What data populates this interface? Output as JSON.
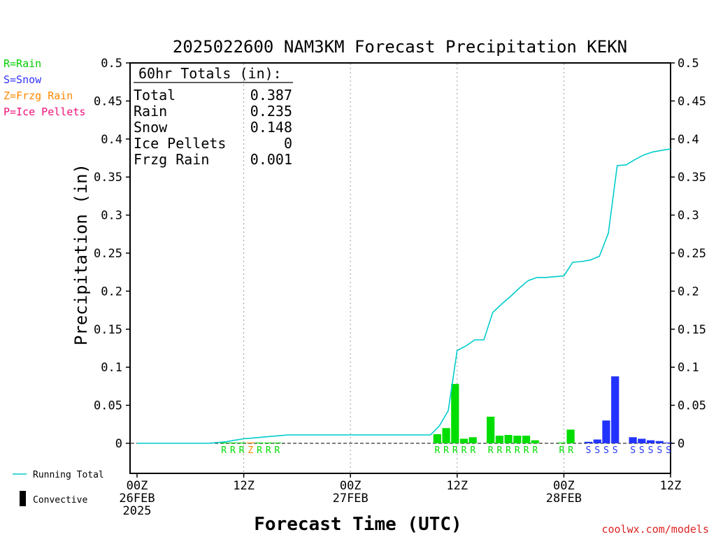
{
  "chart_data": {
    "type": "bar",
    "title": "2025022600 NAM3KM Forecast Precipitation KEKN",
    "xlabel": "Forecast Time (UTC)",
    "ylabel": "Precipitation (in)",
    "ylim": [
      -0.04,
      0.5
    ],
    "xlim": [
      0,
      60
    ],
    "y_ticks": [
      "0",
      "0.05",
      "0.1",
      "0.15",
      "0.2",
      "0.25",
      "0.3",
      "0.35",
      "0.4",
      "0.45",
      "0.5"
    ],
    "x_ticks": [
      {
        "hour": 0,
        "lines": [
          "00Z",
          "26FEB",
          "2025"
        ]
      },
      {
        "hour": 12,
        "lines": [
          "12Z"
        ]
      },
      {
        "hour": 24,
        "lines": [
          "00Z",
          "27FEB"
        ]
      },
      {
        "hour": 36,
        "lines": [
          "12Z"
        ]
      },
      {
        "hour": 48,
        "lines": [
          "00Z",
          "28FEB"
        ]
      },
      {
        "hour": 60,
        "lines": [
          "12Z"
        ]
      }
    ],
    "grid": "dotted vertical at 12Z and 00Z",
    "precip_type_legend": [
      {
        "text": "R=Rain",
        "color": "#00cc00"
      },
      {
        "text": "S=Snow",
        "color": "#3333ff"
      },
      {
        "text": "Z=Frzg Rain",
        "color": "#ff8800"
      },
      {
        "text": "P=Ice Pellets",
        "color": "#ee1177"
      }
    ],
    "series_legend": [
      {
        "text": "Running Total",
        "color": "#00cccc",
        "kind": "line"
      },
      {
        "text": "Convective",
        "color": "#000000",
        "kind": "bar"
      }
    ],
    "totals_box": {
      "header": "60hr Totals (in):",
      "rows": [
        {
          "label": "Total",
          "value": "0.387"
        },
        {
          "label": "Rain",
          "value": "0.235"
        },
        {
          "label": "Snow",
          "value": "0.148"
        },
        {
          "label": "Ice Pellets",
          "value": "0"
        },
        {
          "label": "Frzg Rain",
          "value": "0.001"
        }
      ]
    },
    "bars": [
      {
        "hour": 10,
        "value": 0.001,
        "type": "rain"
      },
      {
        "hour": 11,
        "value": 0.001,
        "type": "rain"
      },
      {
        "hour": 12,
        "value": 0.001,
        "type": "rain"
      },
      {
        "hour": 13,
        "value": 0.001,
        "type": "frzg"
      },
      {
        "hour": 14,
        "value": 0.001,
        "type": "rain"
      },
      {
        "hour": 15,
        "value": 0.001,
        "type": "rain"
      },
      {
        "hour": 16,
        "value": 0.001,
        "type": "rain"
      },
      {
        "hour": 34,
        "value": 0.012,
        "type": "rain"
      },
      {
        "hour": 35,
        "value": 0.02,
        "type": "rain"
      },
      {
        "hour": 36,
        "value": 0.078,
        "type": "rain"
      },
      {
        "hour": 37,
        "value": 0.006,
        "type": "rain"
      },
      {
        "hour": 38,
        "value": 0.008,
        "type": "rain"
      },
      {
        "hour": 40,
        "value": 0.035,
        "type": "rain"
      },
      {
        "hour": 41,
        "value": 0.01,
        "type": "rain"
      },
      {
        "hour": 42,
        "value": 0.011,
        "type": "rain"
      },
      {
        "hour": 43,
        "value": 0.01,
        "type": "rain"
      },
      {
        "hour": 44,
        "value": 0.01,
        "type": "rain"
      },
      {
        "hour": 45,
        "value": 0.004,
        "type": "rain"
      },
      {
        "hour": 48,
        "value": 0.001,
        "type": "rain"
      },
      {
        "hour": 49,
        "value": 0.018,
        "type": "rain"
      },
      {
        "hour": 51,
        "value": 0.002,
        "type": "snow"
      },
      {
        "hour": 52,
        "value": 0.005,
        "type": "snow"
      },
      {
        "hour": 53,
        "value": 0.03,
        "type": "snow"
      },
      {
        "hour": 54,
        "value": 0.088,
        "type": "snow"
      },
      {
        "hour": 56,
        "value": 0.008,
        "type": "snow"
      },
      {
        "hour": 57,
        "value": 0.006,
        "type": "snow"
      },
      {
        "hour": 58,
        "value": 0.004,
        "type": "snow"
      },
      {
        "hour": 59,
        "value": 0.003,
        "type": "snow"
      },
      {
        "hour": 60,
        "value": 0.001,
        "type": "snow"
      }
    ],
    "running_total": {
      "hours": [
        0,
        8,
        9,
        10,
        11,
        12,
        13,
        14,
        15,
        16,
        17,
        18,
        20,
        24,
        28,
        30,
        32,
        33,
        34,
        35,
        36,
        37,
        38,
        39,
        40,
        41,
        42,
        43,
        44,
        45,
        46,
        47,
        48,
        49,
        50,
        51,
        52,
        53,
        54,
        55,
        56,
        57,
        58,
        59,
        60
      ],
      "values": [
        0,
        0,
        0.001,
        0.002,
        0.004,
        0.006,
        0.007,
        0.008,
        0.009,
        0.01,
        0.011,
        0.011,
        0.011,
        0.011,
        0.011,
        0.011,
        0.011,
        0.011,
        0.023,
        0.043,
        0.122,
        0.128,
        0.136,
        0.136,
        0.172,
        0.183,
        0.193,
        0.204,
        0.214,
        0.218,
        0.218,
        0.219,
        0.22,
        0.238,
        0.239,
        0.241,
        0.246,
        0.276,
        0.365,
        0.366,
        0.373,
        0.379,
        0.383,
        0.385,
        0.387
      ]
    },
    "ptype_markers": [
      {
        "hour": 10,
        "letter": "R"
      },
      {
        "hour": 11,
        "letter": "R"
      },
      {
        "hour": 12,
        "letter": "R"
      },
      {
        "hour": 13,
        "letter": "Z"
      },
      {
        "hour": 14,
        "letter": "R"
      },
      {
        "hour": 15,
        "letter": "R"
      },
      {
        "hour": 16,
        "letter": "R"
      },
      {
        "hour": 34,
        "letter": "R"
      },
      {
        "hour": 35,
        "letter": "R"
      },
      {
        "hour": 36,
        "letter": "R"
      },
      {
        "hour": 37,
        "letter": "R"
      },
      {
        "hour": 38,
        "letter": "R"
      },
      {
        "hour": 40,
        "letter": "R"
      },
      {
        "hour": 41,
        "letter": "R"
      },
      {
        "hour": 42,
        "letter": "R"
      },
      {
        "hour": 43,
        "letter": "R"
      },
      {
        "hour": 44,
        "letter": "R"
      },
      {
        "hour": 45,
        "letter": "R"
      },
      {
        "hour": 48,
        "letter": "R"
      },
      {
        "hour": 49,
        "letter": "R"
      },
      {
        "hour": 51,
        "letter": "S"
      },
      {
        "hour": 52,
        "letter": "S"
      },
      {
        "hour": 53,
        "letter": "S"
      },
      {
        "hour": 54,
        "letter": "S"
      },
      {
        "hour": 56,
        "letter": "S"
      },
      {
        "hour": 57,
        "letter": "S"
      },
      {
        "hour": 58,
        "letter": "S"
      },
      {
        "hour": 59,
        "letter": "S"
      },
      {
        "hour": 60,
        "letter": "S"
      }
    ],
    "colors": {
      "rain": "#00dd00",
      "snow": "#2233ff",
      "frzg": "#ff8800",
      "pellets": "#ee1177",
      "running_total": "#00cccc",
      "axis": "#000000",
      "watermark": "#dd2222"
    },
    "watermark": "coolwx.com/models"
  }
}
